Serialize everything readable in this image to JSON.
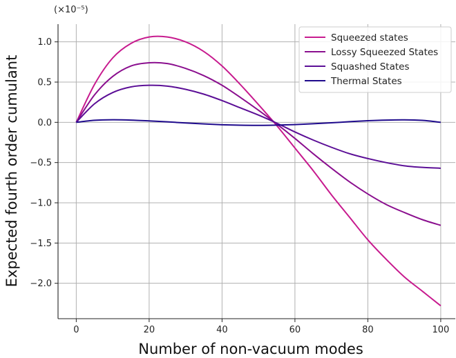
{
  "chart_data": {
    "type": "line",
    "title": "",
    "xlabel": "Number of non-vacuum modes",
    "ylabel": "Expected fourth order cumulant",
    "y_offset_label": "(×10⁻⁵)",
    "xlim": [
      -5,
      104
    ],
    "ylim": [
      -2.44,
      1.22
    ],
    "xticks": [
      0,
      20,
      40,
      60,
      80,
      100
    ],
    "xtick_labels": [
      "0",
      "20",
      "40",
      "60",
      "80",
      "100"
    ],
    "yticks": [
      1.0,
      0.5,
      0.0,
      -0.5,
      -1.0,
      -1.5,
      -2.0
    ],
    "ytick_labels": [
      "1.0",
      "0.5",
      "0.0",
      "−0.5",
      "−1.0",
      "−1.5",
      "−2.0"
    ],
    "grid": true,
    "legend_position": "top-right",
    "x": [
      0,
      5,
      10,
      15,
      20,
      25,
      30,
      35,
      40,
      45,
      50,
      55,
      60,
      65,
      70,
      75,
      80,
      85,
      90,
      95,
      100
    ],
    "series": [
      {
        "name": "Squeezed states",
        "color": "#c71a8e",
        "values": [
          0.0,
          0.47,
          0.8,
          0.98,
          1.06,
          1.06,
          1.0,
          0.88,
          0.7,
          0.47,
          0.22,
          -0.04,
          -0.32,
          -0.6,
          -0.9,
          -1.18,
          -1.46,
          -1.7,
          -1.92,
          -2.1,
          -2.28
        ]
      },
      {
        "name": "Lossy Squeezed States",
        "color": "#8a0e8e",
        "values": [
          0.0,
          0.34,
          0.57,
          0.7,
          0.74,
          0.73,
          0.67,
          0.58,
          0.46,
          0.31,
          0.15,
          -0.02,
          -0.2,
          -0.39,
          -0.57,
          -0.74,
          -0.89,
          -1.02,
          -1.12,
          -1.21,
          -1.28
        ]
      },
      {
        "name": "Squashed States",
        "color": "#5b0e96",
        "values": [
          0.0,
          0.23,
          0.37,
          0.44,
          0.46,
          0.45,
          0.41,
          0.35,
          0.27,
          0.18,
          0.09,
          -0.01,
          -0.12,
          -0.22,
          -0.31,
          -0.39,
          -0.45,
          -0.5,
          -0.54,
          -0.56,
          -0.57
        ]
      },
      {
        "name": "Thermal States",
        "color": "#1e0a8c",
        "values": [
          0.0,
          0.025,
          0.032,
          0.028,
          0.018,
          0.006,
          -0.008,
          -0.02,
          -0.03,
          -0.036,
          -0.038,
          -0.035,
          -0.028,
          -0.018,
          -0.006,
          0.008,
          0.02,
          0.028,
          0.031,
          0.024,
          0.0
        ]
      }
    ]
  }
}
